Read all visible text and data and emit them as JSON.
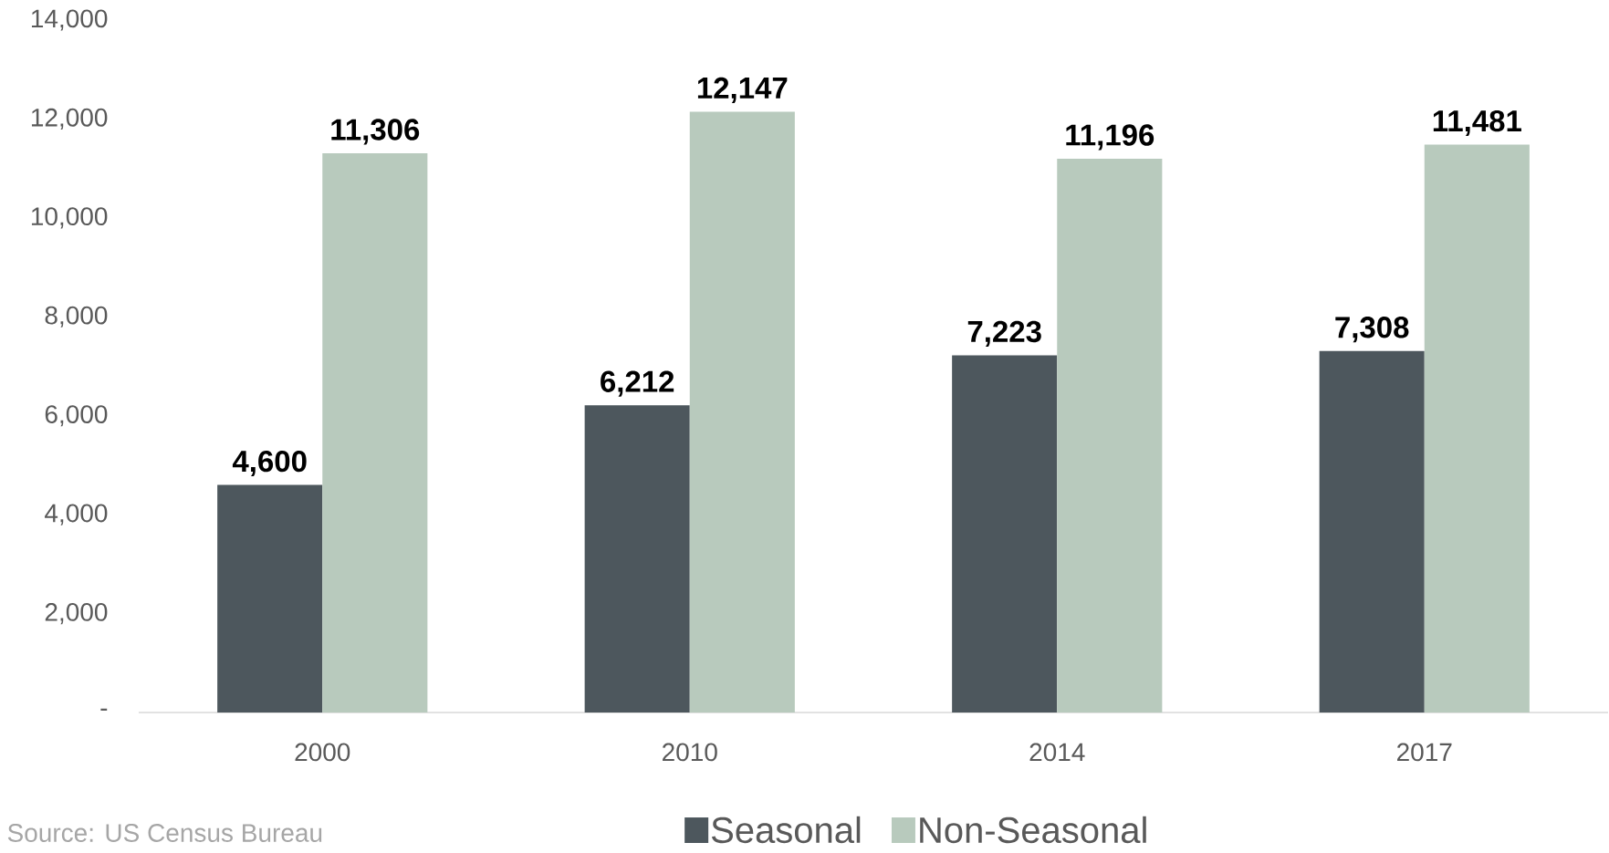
{
  "chart_data": {
    "type": "bar",
    "categories": [
      "2000",
      "2010",
      "2014",
      "2017"
    ],
    "series": [
      {
        "name": "Seasonal",
        "color": "#4d575d",
        "values": [
          4600,
          6212,
          7223,
          7308
        ],
        "value_labels": [
          "4,600",
          "6,212",
          "7,223",
          "7,308"
        ]
      },
      {
        "name": "Non-Seasonal",
        "color": "#b8cabd",
        "values": [
          11306,
          12147,
          11196,
          11481
        ],
        "value_labels": [
          "11,306",
          "12,147",
          "11,196",
          "11,481"
        ]
      }
    ],
    "ylim": [
      0,
      14000
    ],
    "yticks": [
      {
        "value": 0,
        "label": "-"
      },
      {
        "value": 2000,
        "label": "2,000"
      },
      {
        "value": 4000,
        "label": "4,000"
      },
      {
        "value": 6000,
        "label": "6,000"
      },
      {
        "value": 8000,
        "label": "8,000"
      },
      {
        "value": 10000,
        "label": "10,000"
      },
      {
        "value": 12000,
        "label": "12,000"
      },
      {
        "value": 14000,
        "label": "14,000"
      }
    ],
    "grid": false,
    "legend": "bottom",
    "annotations": [
      "Source: US Census Bureau"
    ]
  }
}
